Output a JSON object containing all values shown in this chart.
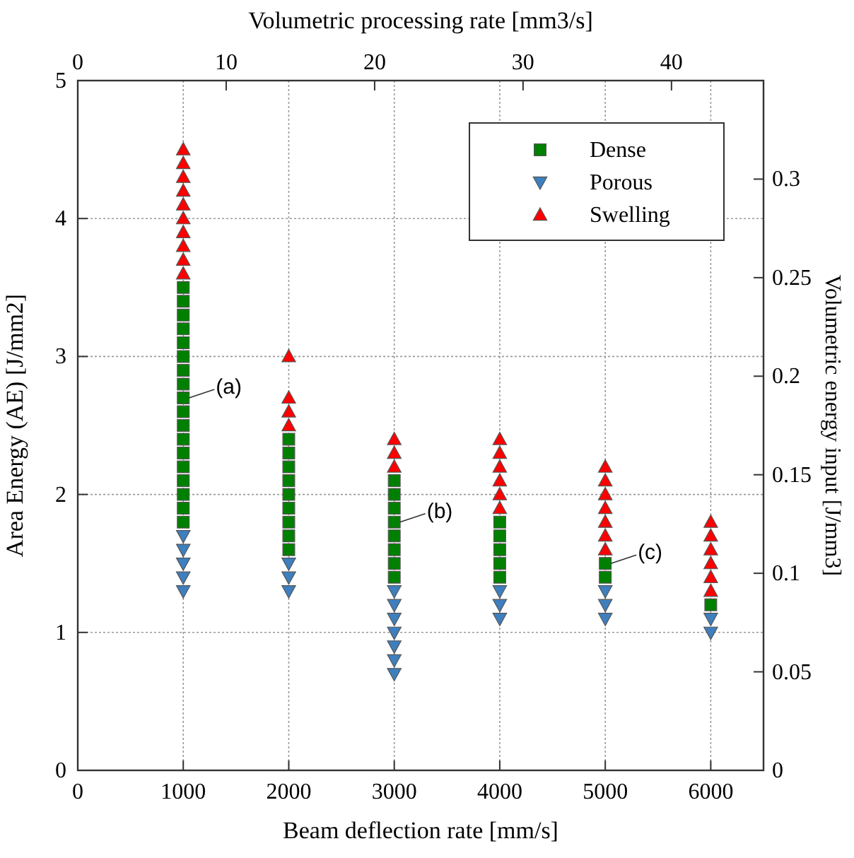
{
  "chart_data": {
    "type": "scatter",
    "xlabel": "Beam deflection rate [mm/s]",
    "ylabel": "Area Energy (AE) [J/mm2]",
    "x2label": "Volumetric processing rate [mm3/s]",
    "y2label": "Volumetric energy input [J/mm3]",
    "xlim": [
      0,
      6500
    ],
    "xticks": [
      0,
      1000,
      2000,
      3000,
      4000,
      5000,
      6000
    ],
    "ylim": [
      0,
      5
    ],
    "yticks": [
      0,
      1,
      2,
      3,
      4,
      5
    ],
    "x2lim": [
      0,
      46.2
    ],
    "x2ticks": [
      0,
      10,
      20,
      30,
      40
    ],
    "y2lim": [
      0,
      0.35
    ],
    "y2ticks": [
      0,
      0.05,
      0.1,
      0.15,
      0.2,
      0.25,
      0.3
    ],
    "grid": true,
    "legend": "top right",
    "series": [
      {
        "name": "Dense",
        "color": "#008000",
        "marker": "square",
        "x": [
          1000,
          1000,
          1000,
          1000,
          1000,
          1000,
          1000,
          1000,
          1000,
          1000,
          1000,
          1000,
          1000,
          1000,
          1000,
          1000,
          1000,
          1000,
          2000,
          2000,
          2000,
          2000,
          2000,
          2000,
          2000,
          2000,
          2000,
          3000,
          3000,
          3000,
          3000,
          3000,
          3000,
          3000,
          3000,
          4000,
          4000,
          4000,
          4000,
          4000,
          5000,
          5000,
          6000
        ],
        "values": [
          3.5,
          3.4,
          3.3,
          3.2,
          3.1,
          3.0,
          2.9,
          2.8,
          2.7,
          2.6,
          2.5,
          2.4,
          2.3,
          2.2,
          2.1,
          2.0,
          1.9,
          1.8,
          2.4,
          2.3,
          2.2,
          2.1,
          2.0,
          1.9,
          1.8,
          1.7,
          1.6,
          2.1,
          2.0,
          1.9,
          1.8,
          1.7,
          1.6,
          1.5,
          1.4,
          1.8,
          1.7,
          1.6,
          1.5,
          1.4,
          1.5,
          1.4,
          1.2
        ]
      },
      {
        "name": "Porous",
        "color": "#3d7fbf",
        "marker": "triangle-down",
        "x": [
          1000,
          1000,
          1000,
          1000,
          1000,
          2000,
          2000,
          2000,
          3000,
          3000,
          3000,
          3000,
          3000,
          3000,
          3000,
          4000,
          4000,
          4000,
          5000,
          5000,
          5000,
          6000,
          6000
        ],
        "values": [
          1.7,
          1.6,
          1.5,
          1.4,
          1.3,
          1.5,
          1.4,
          1.3,
          1.3,
          1.2,
          1.1,
          1.0,
          0.9,
          0.8,
          0.7,
          1.3,
          1.2,
          1.1,
          1.3,
          1.2,
          1.1,
          1.1,
          1.0
        ]
      },
      {
        "name": "Swelling",
        "color": "#ff0000",
        "marker": "triangle",
        "x": [
          1000,
          1000,
          1000,
          1000,
          1000,
          1000,
          1000,
          1000,
          1000,
          1000,
          2000,
          2000,
          2000,
          2000,
          3000,
          3000,
          3000,
          4000,
          4000,
          4000,
          4000,
          4000,
          4000,
          5000,
          5000,
          5000,
          5000,
          5000,
          5000,
          5000,
          6000,
          6000,
          6000,
          6000,
          6000,
          6000
        ],
        "values": [
          4.5,
          4.4,
          4.3,
          4.2,
          4.1,
          4.0,
          3.9,
          3.8,
          3.7,
          3.6,
          3.0,
          2.7,
          2.6,
          2.5,
          2.4,
          2.3,
          2.2,
          2.4,
          2.3,
          2.2,
          2.1,
          2.0,
          1.9,
          2.2,
          2.1,
          2.0,
          1.9,
          1.8,
          1.7,
          1.6,
          1.8,
          1.7,
          1.6,
          1.5,
          1.4,
          1.3
        ]
      }
    ],
    "annotations": [
      {
        "text": "(a)",
        "x": 1000,
        "y": 2.7
      },
      {
        "text": "(b)",
        "x": 3000,
        "y": 1.8
      },
      {
        "text": "(c)",
        "x": 5000,
        "y": 1.5
      }
    ]
  }
}
